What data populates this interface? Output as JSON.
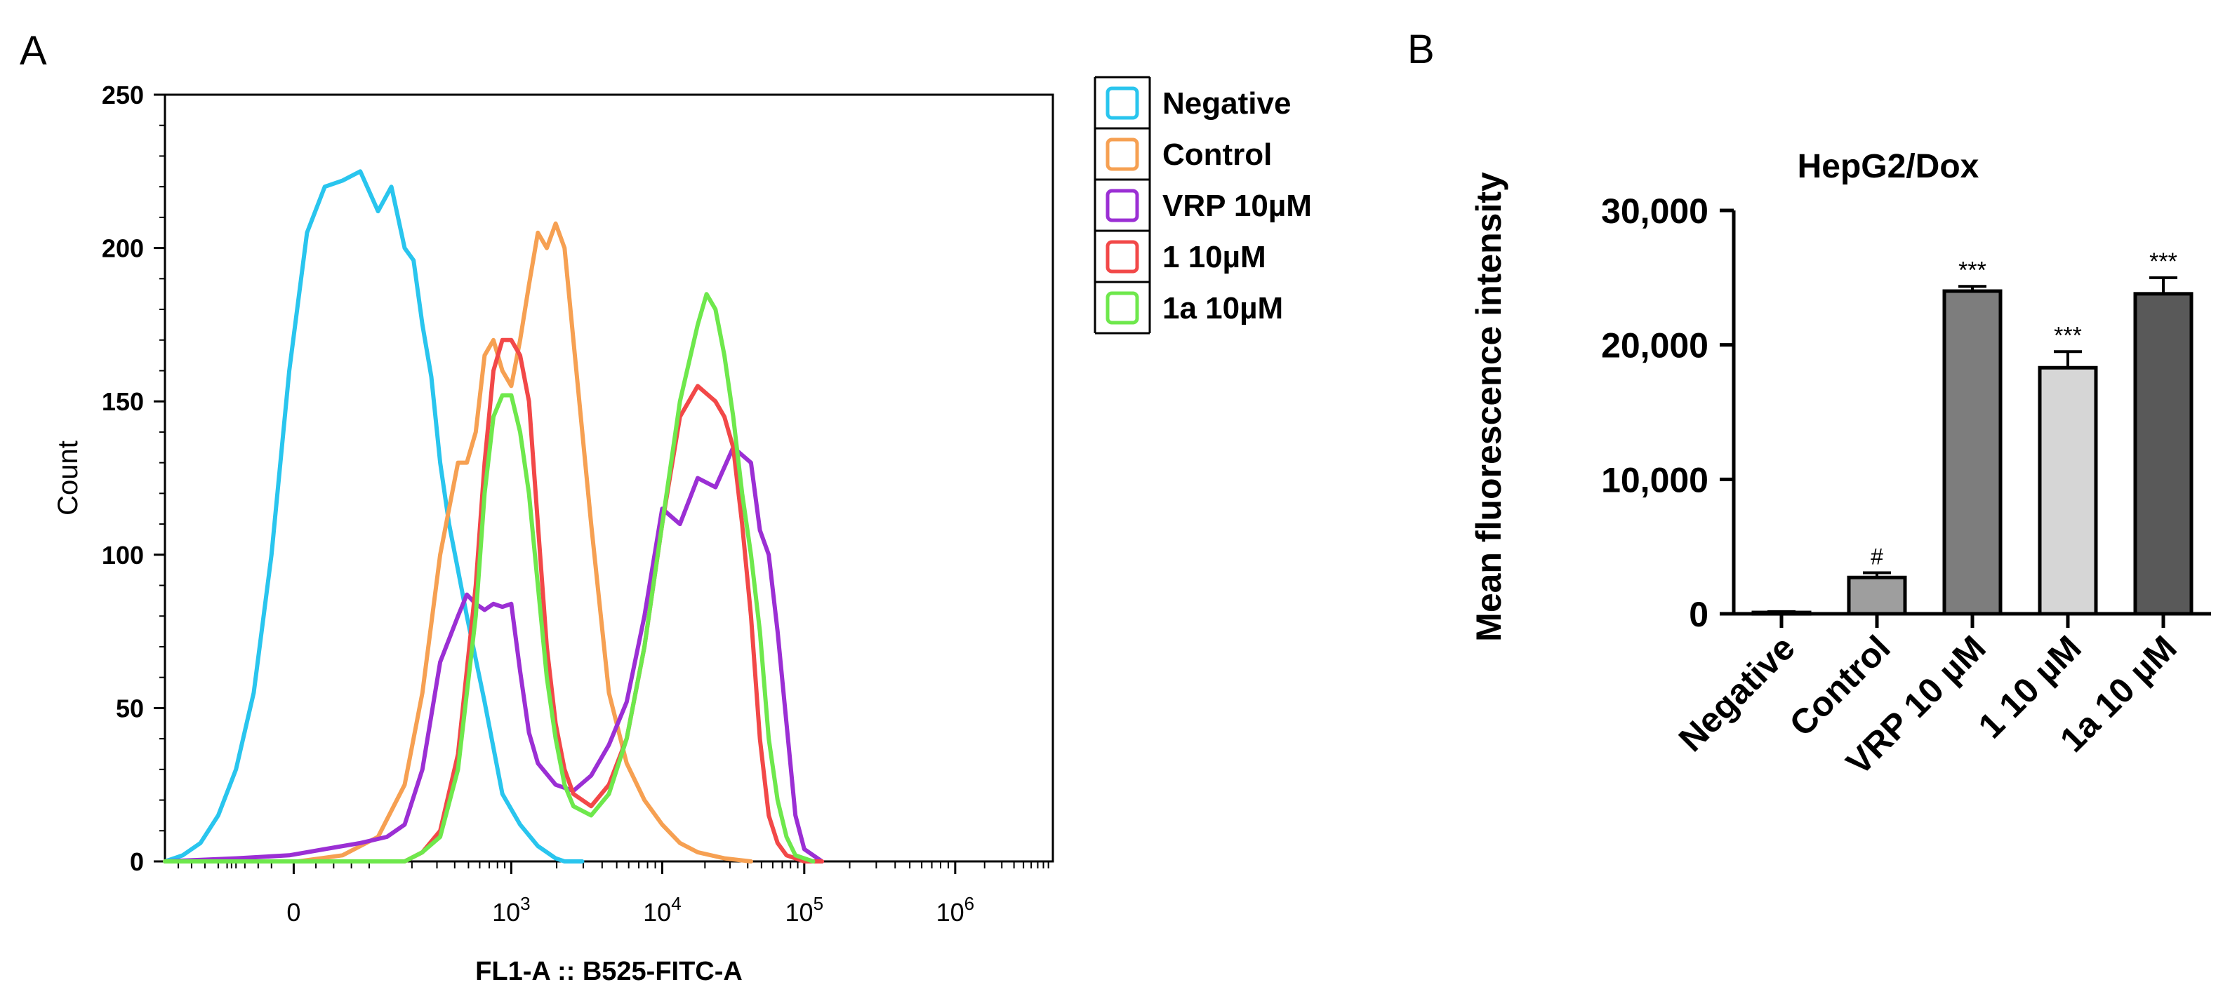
{
  "chart_data": [
    {
      "panel_label": "A",
      "type": "line",
      "title": "",
      "xlabel": "FL1-A :: B525-FITC-A",
      "ylabel": "Count",
      "ylim": [
        0,
        250
      ],
      "yticks": [
        0,
        50,
        100,
        150,
        200,
        250
      ],
      "ytick_labels": [
        "0",
        "50",
        "100",
        "150",
        "200",
        "250"
      ],
      "xscale": "biexponential",
      "xtick_labels": [
        {
          "value": 0,
          "base": "0",
          "exp": ""
        },
        {
          "value": 1000,
          "base": "10",
          "exp": "3"
        },
        {
          "value": 10000,
          "base": "10",
          "exp": "4"
        },
        {
          "value": 100000,
          "base": "10",
          "exp": "5"
        },
        {
          "value": 1000000,
          "base": "10",
          "exp": "6"
        }
      ],
      "x_axis_note": "x values are in display channel units (0 to 100), where 10^3 = 39, 10^4 = 56, 10^5 = 72, 10^6 = 89",
      "legend": {
        "position": "outside-right-top"
      },
      "series": [
        {
          "name": "Negative",
          "color": "#29c5ee",
          "x": [
            0,
            2,
            4,
            6,
            8,
            10,
            12,
            14,
            16,
            18,
            20,
            22,
            24,
            25.5,
            27,
            28,
            29,
            30,
            31,
            32,
            33,
            34,
            36,
            38,
            40,
            42,
            43,
            44,
            45,
            47
          ],
          "y": [
            0,
            2,
            6,
            15,
            30,
            55,
            100,
            160,
            205,
            220,
            222,
            225,
            212,
            220,
            200,
            196,
            175,
            158,
            130,
            110,
            95,
            80,
            52,
            22,
            12,
            5,
            3,
            1,
            0,
            0
          ]
        },
        {
          "name": "Control",
          "color": "#f6a052",
          "x": [
            0,
            15,
            20,
            24,
            27,
            29,
            31,
            33,
            34,
            35,
            36,
            37,
            38,
            39,
            40,
            41,
            42,
            43,
            44,
            45,
            46,
            48,
            50,
            52,
            54,
            56,
            58,
            60,
            63,
            66
          ],
          "y": [
            0,
            0,
            2,
            8,
            25,
            55,
            100,
            130,
            130,
            140,
            165,
            170,
            160,
            155,
            170,
            188,
            205,
            200,
            208,
            200,
            170,
            110,
            55,
            32,
            20,
            12,
            6,
            3,
            1,
            0
          ]
        },
        {
          "name": "VRP 10µM",
          "color": "#9b2fd4",
          "x": [
            0,
            8,
            14,
            18,
            22,
            25,
            27,
            29,
            31,
            33,
            34,
            35,
            36,
            37,
            38,
            39,
            40,
            41,
            42,
            44,
            46,
            48,
            50,
            52,
            54,
            56,
            58,
            60,
            62,
            64,
            66,
            67,
            68,
            69,
            70,
            71,
            72,
            74
          ],
          "y": [
            0,
            1,
            2,
            4,
            6,
            8,
            12,
            30,
            65,
            80,
            87,
            84,
            82,
            84,
            83,
            84,
            62,
            42,
            32,
            25,
            23,
            28,
            38,
            52,
            80,
            115,
            110,
            125,
            122,
            135,
            130,
            108,
            100,
            75,
            45,
            15,
            4,
            0
          ]
        },
        {
          "name": "1  10µM",
          "color": "#f24848",
          "x": [
            0,
            27,
            29,
            31,
            33,
            35,
            36,
            37,
            38,
            39,
            40,
            41,
            42,
            43,
            44,
            45,
            46,
            48,
            50,
            52,
            54,
            56,
            58,
            60,
            62,
            63,
            64,
            65,
            66,
            67,
            68,
            69,
            70,
            71,
            72,
            74
          ],
          "y": [
            0,
            0,
            3,
            10,
            35,
            90,
            130,
            160,
            170,
            170,
            165,
            150,
            110,
            70,
            45,
            30,
            22,
            18,
            25,
            40,
            70,
            110,
            145,
            155,
            150,
            145,
            135,
            110,
            80,
            40,
            15,
            6,
            2,
            1,
            0,
            0
          ]
        },
        {
          "name": "1a  10µM",
          "color": "#6ee84c",
          "x": [
            0,
            27,
            29,
            31,
            33,
            35,
            36,
            37,
            38,
            39,
            40,
            41,
            42,
            43,
            44,
            45,
            46,
            48,
            50,
            52,
            54,
            56,
            58,
            60,
            61,
            62,
            63,
            64,
            65,
            66,
            67,
            68,
            69,
            70,
            71,
            73
          ],
          "y": [
            0,
            0,
            3,
            8,
            30,
            80,
            120,
            145,
            152,
            152,
            140,
            120,
            90,
            60,
            40,
            25,
            18,
            15,
            22,
            40,
            70,
            110,
            150,
            175,
            185,
            180,
            165,
            145,
            120,
            100,
            75,
            40,
            20,
            8,
            2,
            0
          ]
        }
      ]
    },
    {
      "panel_label": "B",
      "type": "bar",
      "title": "HepG2/Dox",
      "xlabel": "",
      "ylabel": "Mean fluorescence intensity",
      "ylim": [
        0,
        30000
      ],
      "yticks": [
        0,
        10000,
        20000,
        30000
      ],
      "ytick_labels": [
        "0",
        "10,000",
        "20,000",
        "30,000"
      ],
      "categories": [
        "Negative",
        "Control",
        "VRP 10 µM",
        "1 10 µM",
        "1a 10 µM"
      ],
      "values": [
        100,
        2700,
        24000,
        18300,
        23800
      ],
      "errors": [
        60,
        350,
        350,
        1200,
        1200
      ],
      "bar_colors": [
        "#e0e0e0",
        "#9e9e9e",
        "#7d7d7d",
        "#d6d6d6",
        "#595959"
      ],
      "annotations": [
        "",
        "#",
        "***",
        "***",
        "***"
      ],
      "grid": false
    }
  ]
}
